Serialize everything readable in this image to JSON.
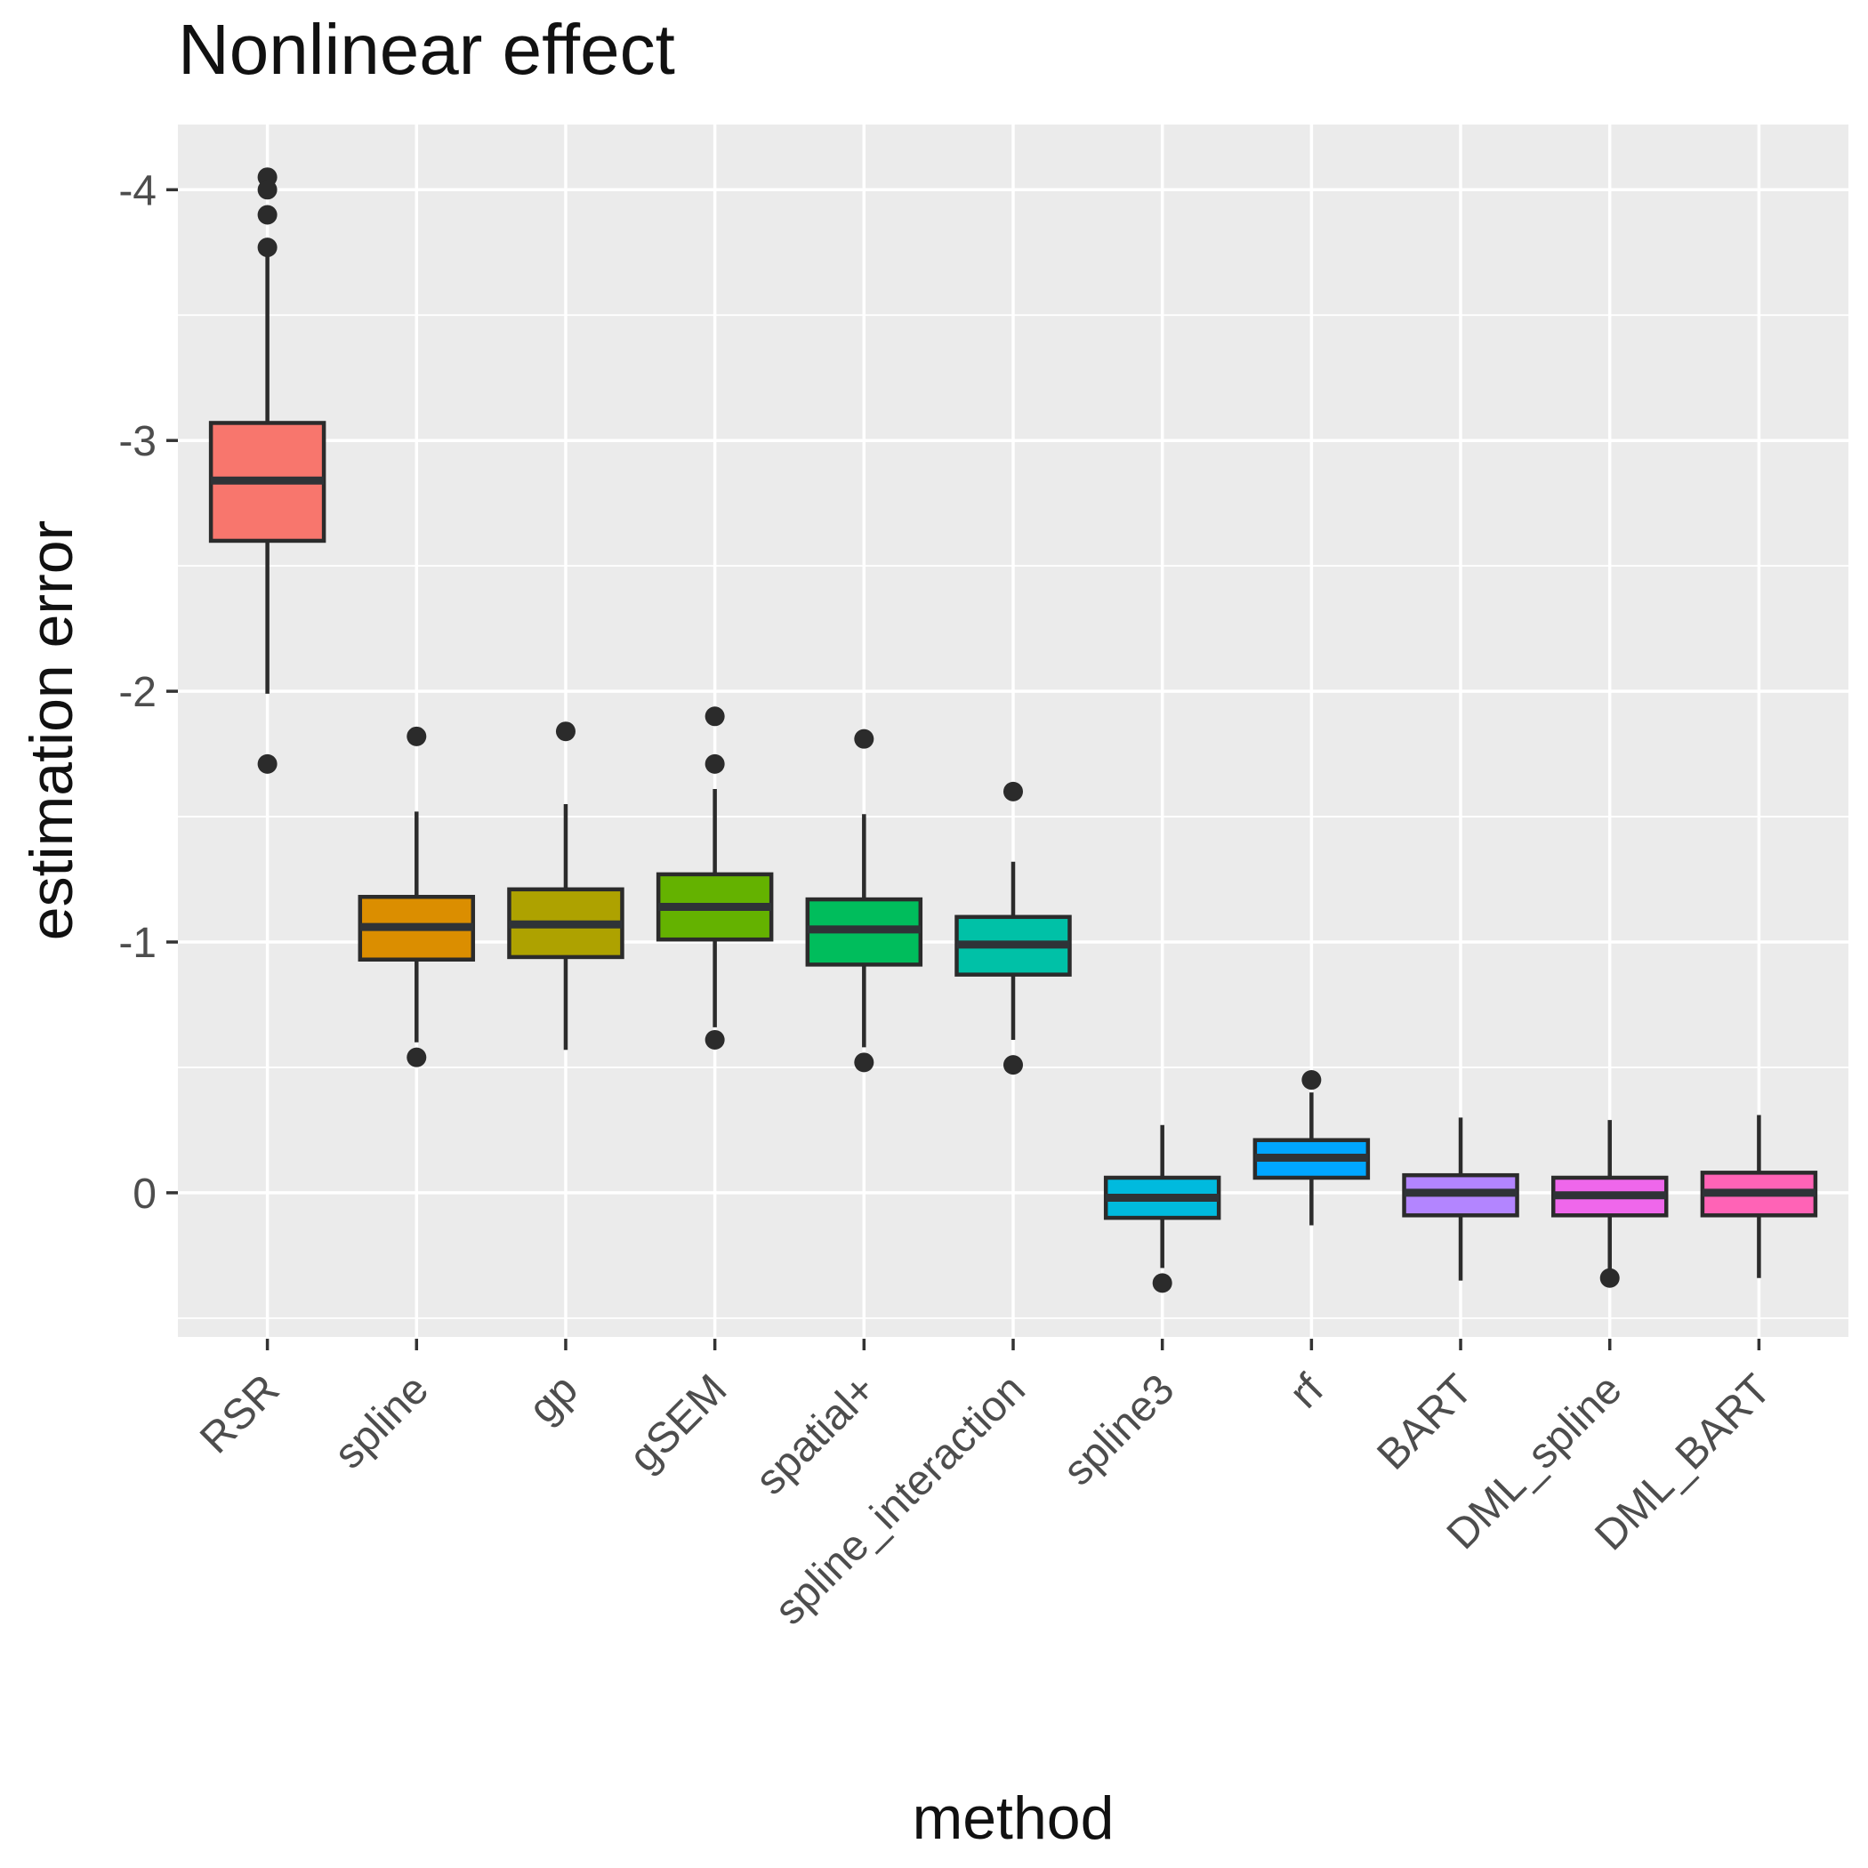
{
  "chart_data": {
    "type": "boxplot",
    "title": "Nonlinear effect",
    "xlabel": "method",
    "ylabel": "estimation error",
    "panel_background": "#EBEBEB",
    "gridline_color": "#FFFFFF",
    "box_border_color": "#2b2b2b",
    "median_color": "#2f3337",
    "outlier_color": "#2b2b2b",
    "axis_text_color": "#4d4d4d",
    "tick_mark_color": "#333333",
    "legend": "none",
    "grid": "on",
    "y_axis": {
      "reversed": true,
      "ticks": [
        -4,
        -3,
        -2,
        -1,
        0
      ],
      "tick_labels": [
        "-4",
        "-3",
        "-2",
        "-1",
        "0"
      ],
      "minor_ticks": [
        -3.5,
        -2.5,
        -1.5,
        -0.5,
        0.5
      ],
      "domain_top": -4.26,
      "domain_bottom": 0.575
    },
    "categories": [
      "RSR",
      "spline",
      "gp",
      "gSEM",
      "spatial+",
      "spline_interaction",
      "spline3",
      "rf",
      "BART",
      "DML_spline",
      "DML_BART"
    ],
    "series": [
      {
        "name": "RSR",
        "color": "#F8766D",
        "whisker_min": -3.74,
        "q1": -3.07,
        "median": -2.84,
        "q3": -2.6,
        "whisker_max": -1.99,
        "outliers": [
          -4.05,
          -4.0,
          -3.9,
          -3.77,
          -1.71
        ]
      },
      {
        "name": "spline",
        "color": "#DB8E00",
        "whisker_min": -1.52,
        "q1": -1.18,
        "median": -1.06,
        "q3": -0.93,
        "whisker_max": -0.6,
        "outliers": [
          -1.82,
          -0.54
        ]
      },
      {
        "name": "gp",
        "color": "#AEA200",
        "whisker_min": -1.55,
        "q1": -1.21,
        "median": -1.07,
        "q3": -0.94,
        "whisker_max": -0.57,
        "outliers": [
          -1.84
        ]
      },
      {
        "name": "gSEM",
        "color": "#64B200",
        "whisker_min": -1.61,
        "q1": -1.27,
        "median": -1.14,
        "q3": -1.01,
        "whisker_max": -0.66,
        "outliers": [
          -1.9,
          -1.71,
          -0.61
        ]
      },
      {
        "name": "spatial+",
        "color": "#00BD5C",
        "whisker_min": -1.51,
        "q1": -1.17,
        "median": -1.05,
        "q3": -0.91,
        "whisker_max": -0.58,
        "outliers": [
          -1.81,
          -0.52
        ]
      },
      {
        "name": "spline_interaction",
        "color": "#00C1A7",
        "whisker_min": -1.32,
        "q1": -1.1,
        "median": -0.99,
        "q3": -0.87,
        "whisker_max": -0.61,
        "outliers": [
          -1.6,
          -0.51
        ]
      },
      {
        "name": "spline3",
        "color": "#00BADE",
        "whisker_min": -0.27,
        "q1": -0.06,
        "median": 0.02,
        "q3": 0.1,
        "whisker_max": 0.3,
        "outliers": [
          0.36
        ]
      },
      {
        "name": "rf",
        "color": "#00A6FF",
        "whisker_min": -0.4,
        "q1": -0.21,
        "median": -0.14,
        "q3": -0.06,
        "whisker_max": 0.13,
        "outliers": [
          -0.45
        ]
      },
      {
        "name": "BART",
        "color": "#B385FF",
        "whisker_min": -0.3,
        "q1": -0.07,
        "median": 0.0,
        "q3": 0.09,
        "whisker_max": 0.35,
        "outliers": []
      },
      {
        "name": "DML_spline",
        "color": "#EF67EB",
        "whisker_min": -0.29,
        "q1": -0.06,
        "median": 0.01,
        "q3": 0.09,
        "whisker_max": 0.31,
        "outliers": [
          0.34
        ]
      },
      {
        "name": "DML_BART",
        "color": "#FF63B6",
        "whisker_min": -0.31,
        "q1": -0.08,
        "median": 0.0,
        "q3": 0.09,
        "whisker_max": 0.34,
        "outliers": []
      }
    ]
  }
}
